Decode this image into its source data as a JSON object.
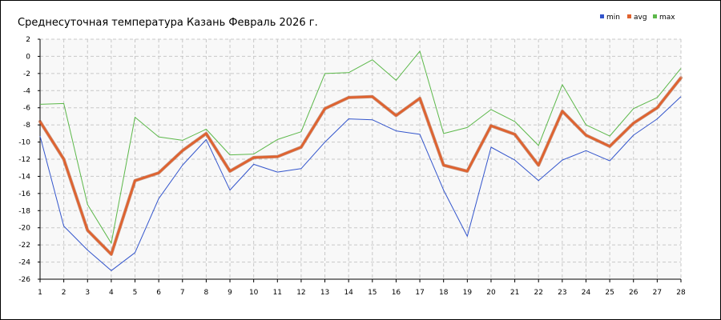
{
  "chart_data": {
    "type": "line",
    "title": "Среднесуточная температура Казань  Февраль 2026 г.",
    "xlabel": "",
    "ylabel": "",
    "x": [
      1,
      2,
      3,
      4,
      5,
      6,
      7,
      8,
      9,
      10,
      11,
      12,
      13,
      14,
      15,
      16,
      17,
      18,
      19,
      20,
      21,
      22,
      23,
      24,
      25,
      26,
      27,
      28
    ],
    "ylim": [
      -26,
      2
    ],
    "yticks": [
      2,
      0,
      -2,
      -4,
      -6,
      -8,
      -10,
      -12,
      -14,
      -16,
      -18,
      -20,
      -22,
      -24,
      -26
    ],
    "grid": true,
    "legend_position": "top-right",
    "series": [
      {
        "name": "min",
        "color": "#3355cc",
        "values": [
          -9.3,
          -19.8,
          -22.6,
          -25.0,
          -22.9,
          -16.6,
          -12.7,
          -9.7,
          -15.6,
          -12.6,
          -13.5,
          -13.1,
          -10.0,
          -7.3,
          -7.4,
          -8.7,
          -9.1,
          -15.6,
          -21.0,
          -10.6,
          -12.1,
          -14.5,
          -12.1,
          -11.0,
          -12.2,
          -9.2,
          -7.3,
          -4.7
        ]
      },
      {
        "name": "avg",
        "color": "#e0622e",
        "values": [
          -7.6,
          -12.0,
          -20.3,
          -23.1,
          -14.5,
          -13.6,
          -11.0,
          -9.0,
          -13.4,
          -11.8,
          -11.7,
          -10.6,
          -6.1,
          -4.8,
          -4.7,
          -6.9,
          -4.9,
          -12.7,
          -13.4,
          -8.1,
          -9.1,
          -12.7,
          -6.4,
          -9.2,
          -10.5,
          -7.8,
          -6.0,
          -2.5
        ]
      },
      {
        "name": "max",
        "color": "#5cb84a",
        "values": [
          -5.6,
          -5.5,
          -17.3,
          -21.8,
          -7.1,
          -9.4,
          -9.8,
          -8.5,
          -11.5,
          -11.4,
          -9.7,
          -8.8,
          -2.0,
          -1.9,
          -0.4,
          -2.8,
          0.6,
          -9.0,
          -8.3,
          -6.2,
          -7.6,
          -10.4,
          -3.3,
          -8.0,
          -9.3,
          -6.1,
          -4.8,
          -1.4
        ]
      }
    ]
  }
}
